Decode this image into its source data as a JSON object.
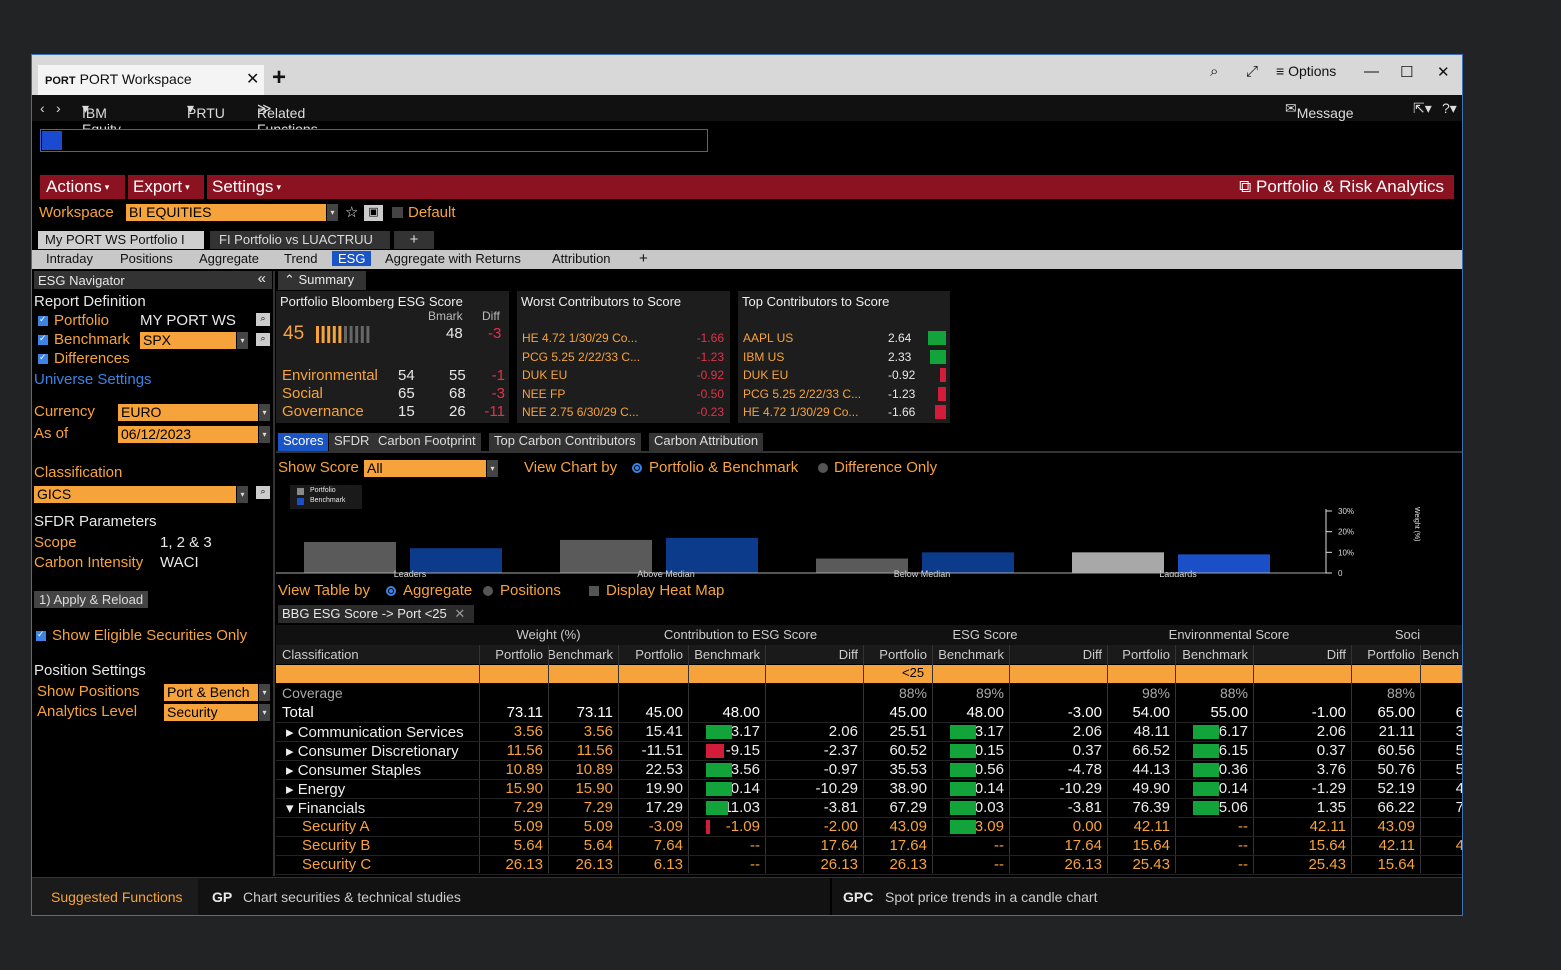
{
  "window": {
    "tab_tag": "PORT",
    "tab_title": "PORT Workspace",
    "options_label": "Options"
  },
  "nav": {
    "security": "IBM Equity",
    "function": "PRTU",
    "related": "Related Functions Menu",
    "message": "Message"
  },
  "menubar": {
    "actions": "Actions",
    "export": "Export",
    "settings": "Settings",
    "brand": "Portfolio & Risk Analytics"
  },
  "workspace": {
    "label": "Workspace",
    "value": "BI EQUITIES",
    "default_label": "Default",
    "tabs": [
      "My PORT WS Portfolio I",
      "FI Portfolio vs LUACTRUU"
    ]
  },
  "subtabs": [
    "Intraday",
    "Positions",
    "Aggregate",
    "Trend",
    "ESG",
    "Aggregate with Returns",
    "Attribution"
  ],
  "navigator": {
    "title": "ESG Navigator",
    "report_definition": "Report Definition",
    "portfolio_label": "Portfolio",
    "portfolio_value": "MY PORT WS",
    "benchmark_label": "Benchmark",
    "benchmark_value": "SPX",
    "differences_label": "Differences",
    "universe_settings": "Universe Settings",
    "currency_label": "Currency",
    "currency_value": "EURO",
    "asof_label": "As of",
    "asof_value": "06/12/2023",
    "classification_label": "Classification",
    "classification_value": "GICS",
    "sfdr_label": "SFDR Parameters",
    "scope_label": "Scope",
    "scope_value": "1, 2 & 3",
    "carbon_label": "Carbon Intensity",
    "carbon_value": "WACI",
    "apply_button": "1) Apply & Reload",
    "eligible_label": "Show Eligible Securities Only",
    "position_settings": "Position Settings",
    "show_positions_label": "Show Positions",
    "show_positions_value": "Port & Bench",
    "analytics_label": "Analytics Level",
    "analytics_value": "Security"
  },
  "summary": {
    "label": "Summary",
    "score_title": "Portfolio Bloomberg ESG Score",
    "bmark_label": "Bmark",
    "diff_label": "Diff",
    "portfolio_score": "45",
    "bmark_score": "48",
    "diff_score": "-3",
    "rows": [
      {
        "name": "Environmental",
        "port": "54",
        "bmark": "55",
        "diff": "-1"
      },
      {
        "name": "Social",
        "port": "65",
        "bmark": "68",
        "diff": "-3"
      },
      {
        "name": "Governance",
        "port": "15",
        "bmark": "26",
        "diff": "-11"
      }
    ],
    "worst_title": "Worst Contributors to Score",
    "worst": [
      {
        "name": "HE 4.72 1/30/29 Co...",
        "value": "-1.66"
      },
      {
        "name": "PCG 5.25 2/22/33 C...",
        "value": "-1.23"
      },
      {
        "name": "DUK EU",
        "value": "-0.92"
      },
      {
        "name": "NEE FP",
        "value": "-0.50"
      },
      {
        "name": "NEE 2.75 6/30/29 C...",
        "value": "-0.23"
      }
    ],
    "top_title": "Top Contributors to Score",
    "top": [
      {
        "name": "AAPL US",
        "value": "2.64"
      },
      {
        "name": "IBM US",
        "value": "2.33"
      },
      {
        "name": "DUK EU",
        "value": "-0.92"
      },
      {
        "name": "PCG 5.25 2/22/33 C...",
        "value": "-1.23"
      },
      {
        "name": "HE 4.72 1/30/29 Co...",
        "value": "-1.66"
      }
    ]
  },
  "scoretabs": [
    "Scores",
    "SFDR",
    "Carbon Footprint",
    "Top Carbon Contributors",
    "Carbon Attribution"
  ],
  "showscore": {
    "label": "Show Score",
    "value": "All",
    "viewchart_label": "View Chart by",
    "opt_pb": "Portfolio & Benchmark",
    "opt_diff": "Difference Only"
  },
  "chart_data": {
    "type": "bar",
    "categories": [
      "Leaders",
      "Above Median",
      "Below Median",
      "Laggards"
    ],
    "series": [
      {
        "name": "Portfolio",
        "values": [
          15,
          16,
          7,
          10
        ],
        "color": "#5a5a5a"
      },
      {
        "name": "Benchmark",
        "values": [
          12,
          17,
          10,
          9
        ],
        "color": "#0d3b8c"
      }
    ],
    "ylabel": "Weight (%)",
    "yticks": [
      "30%",
      "20%",
      "10%",
      "0"
    ],
    "ylim": [
      0,
      30
    ]
  },
  "viewtable": {
    "label": "View Table by",
    "opt_agg": "Aggregate",
    "opt_pos": "Positions",
    "heatmap": "Display Heat Map",
    "filter_chip": "BBG ESG Score -> Port <25"
  },
  "table": {
    "groups": [
      "Weight (%)",
      "Contribution to ESG Score",
      "ESG Score",
      "Environmental Score",
      "Soci"
    ],
    "cols": [
      "Classification",
      "Portfolio",
      "Benchmark",
      "Portfolio",
      "Benchmark",
      "Diff",
      "Portfolio",
      "Benchmark",
      "Diff",
      "Portfolio",
      "Benchmark",
      "Diff",
      "Portfolio",
      "Bench"
    ],
    "filter_value": "<25",
    "coverage": {
      "label": "Coverage",
      "esg_p": "88%",
      "esg_b": "89%",
      "env_p": "98%",
      "env_b": "88%",
      "soc_p": "88%"
    },
    "rows": [
      {
        "name": "Total",
        "style": "total",
        "c": [
          "73.11",
          "73.11",
          "45.00",
          "48.00",
          "",
          "45.00",
          "48.00",
          "-3.00",
          "54.00",
          "55.00",
          "-1.00",
          "65.00",
          "6"
        ]
      },
      {
        "name": "Communication Services",
        "style": "sector",
        "c": [
          "3.56",
          "3.56",
          "15.41",
          "13.17",
          "2.06",
          "25.51",
          "23.17",
          "2.06",
          "48.11",
          "46.17",
          "2.06",
          "21.11",
          "3"
        ]
      },
      {
        "name": "Consumer Discretionary",
        "style": "sector",
        "c": [
          "11.56",
          "11.56",
          "-11.51",
          "-9.15",
          "-2.37",
          "60.52",
          "60.15",
          "0.37",
          "66.52",
          "66.15",
          "0.37",
          "60.56",
          "5"
        ]
      },
      {
        "name": "Consumer Staples",
        "style": "sector",
        "c": [
          "10.89",
          "10.89",
          "22.53",
          "23.56",
          "-0.97",
          "35.53",
          "40.56",
          "-4.78",
          "44.13",
          "40.36",
          "3.76",
          "50.76",
          "5"
        ]
      },
      {
        "name": "Energy",
        "style": "sector",
        "c": [
          "15.90",
          "15.90",
          "19.90",
          "20.14",
          "-10.29",
          "38.90",
          "50.14",
          "-10.29",
          "49.90",
          "50.14",
          "-1.29",
          "52.19",
          "4"
        ]
      },
      {
        "name": "Financials",
        "style": "sector-open",
        "c": [
          "7.29",
          "7.29",
          "17.29",
          "11.03",
          "-3.81",
          "67.29",
          "70.03",
          "-3.81",
          "76.39",
          "75.06",
          "1.35",
          "66.22",
          "7"
        ]
      },
      {
        "name": "Security A",
        "style": "security",
        "c": [
          "5.09",
          "5.09",
          "-3.09",
          "-1.09",
          "-2.00",
          "43.09",
          "43.09",
          "0.00",
          "42.11",
          "--",
          "42.11",
          "43.09",
          ""
        ]
      },
      {
        "name": "Security B",
        "style": "security",
        "c": [
          "5.64",
          "5.64",
          "7.64",
          "--",
          "17.64",
          "17.64",
          "--",
          "17.64",
          "15.64",
          "--",
          "15.64",
          "42.11",
          "4"
        ]
      },
      {
        "name": "Security C",
        "style": "security",
        "c": [
          "26.13",
          "26.13",
          "6.13",
          "--",
          "26.13",
          "26.13",
          "--",
          "26.13",
          "25.43",
          "--",
          "25.43",
          "15.64",
          ""
        ]
      }
    ]
  },
  "footer": {
    "suggested": "Suggested Functions",
    "f1_code": "GP",
    "f1_desc": "Chart securities & technical studies",
    "f2_code": "GPC",
    "f2_desc": "Spot price trends in a candle chart"
  }
}
